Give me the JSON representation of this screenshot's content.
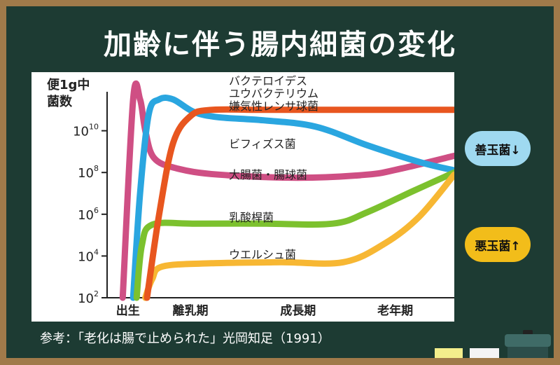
{
  "title": "加齢に伴う腸内細菌の変化",
  "citation": "参考：「老化は腸で止められた」光岡知足（1991）",
  "badges": {
    "good": "善玉菌↓",
    "bad": "悪玉菌↑"
  },
  "colors": {
    "board": "#1d3b33",
    "frame": "#a07a4a",
    "bacteroides": "#e8561f",
    "bifidobacterium": "#2aa6e0",
    "ecoli": "#cf4f84",
    "lactobacillus": "#7cc12e",
    "welchii": "#f7b733",
    "good_badge": "#9fd9f0",
    "bad_badge": "#f2bd1a"
  },
  "chart_data": {
    "type": "line",
    "ylabel_lines": [
      "便1g中",
      "菌数"
    ],
    "y_ticks": [
      {
        "base": "10",
        "exp": "2",
        "value": 2
      },
      {
        "base": "10",
        "exp": "4",
        "value": 4
      },
      {
        "base": "10",
        "exp": "6",
        "value": 6
      },
      {
        "base": "10",
        "exp": "8",
        "value": 8
      },
      {
        "base": "10",
        "exp": "10",
        "value": 10
      }
    ],
    "ylim": [
      2,
      11.8
    ],
    "xlim": [
      0,
      10
    ],
    "x_ticks": [
      {
        "label": "出生",
        "value": 0.6
      },
      {
        "label": "離乳期",
        "value": 2.4
      },
      {
        "label": "成長期",
        "value": 5.5
      },
      {
        "label": "老年期",
        "value": 8.3
      }
    ],
    "series": [
      {
        "key": "bacteroides",
        "label_lines": [
          "バクテロイデス",
          "ユウバクテリウム",
          "嫌気性レンサ球菌"
        ],
        "color": "#e8561f",
        "points": [
          [
            1.15,
            2.0
          ],
          [
            1.5,
            6.0
          ],
          [
            1.9,
            9.4
          ],
          [
            2.4,
            10.7
          ],
          [
            3.0,
            11.0
          ],
          [
            4.5,
            11.0
          ],
          [
            6.5,
            11.0
          ],
          [
            8.5,
            11.0
          ],
          [
            10.0,
            11.0
          ]
        ]
      },
      {
        "key": "bifidobacterium",
        "label_lines": [
          "ビフィズス菌"
        ],
        "color": "#2aa6e0",
        "points": [
          [
            0.75,
            2.0
          ],
          [
            0.95,
            7.0
          ],
          [
            1.2,
            10.8
          ],
          [
            1.5,
            11.5
          ],
          [
            1.9,
            11.5
          ],
          [
            2.5,
            10.9
          ],
          [
            3.2,
            10.65
          ],
          [
            4.5,
            10.5
          ],
          [
            6.0,
            10.2
          ],
          [
            7.5,
            9.3
          ],
          [
            9.0,
            8.5
          ],
          [
            10.0,
            8.1
          ]
        ]
      },
      {
        "key": "ecoli",
        "label_lines": [
          "大腸菌・腸球菌"
        ],
        "color": "#cf4f84",
        "points": [
          [
            0.45,
            2.0
          ],
          [
            0.75,
            11.5
          ],
          [
            0.95,
            11.5
          ],
          [
            1.1,
            10.0
          ],
          [
            1.35,
            8.7
          ],
          [
            2.0,
            8.2
          ],
          [
            3.2,
            7.9
          ],
          [
            5.5,
            7.75
          ],
          [
            7.5,
            7.9
          ],
          [
            8.5,
            8.2
          ],
          [
            10.0,
            8.8
          ]
        ]
      },
      {
        "key": "lactobacillus",
        "label_lines": [
          "乳酸桿菌"
        ],
        "color": "#7cc12e",
        "points": [
          [
            0.85,
            2.0
          ],
          [
            1.0,
            4.5
          ],
          [
            1.3,
            5.5
          ],
          [
            2.5,
            5.55
          ],
          [
            4.5,
            5.55
          ],
          [
            6.5,
            5.55
          ],
          [
            7.5,
            6.1
          ],
          [
            8.8,
            7.1
          ],
          [
            10.0,
            8.0
          ]
        ]
      },
      {
        "key": "welchii",
        "label_lines": [
          "ウエルシュ菌"
        ],
        "color": "#f7b733",
        "points": [
          [
            1.1,
            2.0
          ],
          [
            1.3,
            2.9
          ],
          [
            1.6,
            3.5
          ],
          [
            3.0,
            3.65
          ],
          [
            5.0,
            3.7
          ],
          [
            6.8,
            3.7
          ],
          [
            8.0,
            4.6
          ],
          [
            9.0,
            5.9
          ],
          [
            10.0,
            7.9
          ]
        ]
      }
    ]
  }
}
